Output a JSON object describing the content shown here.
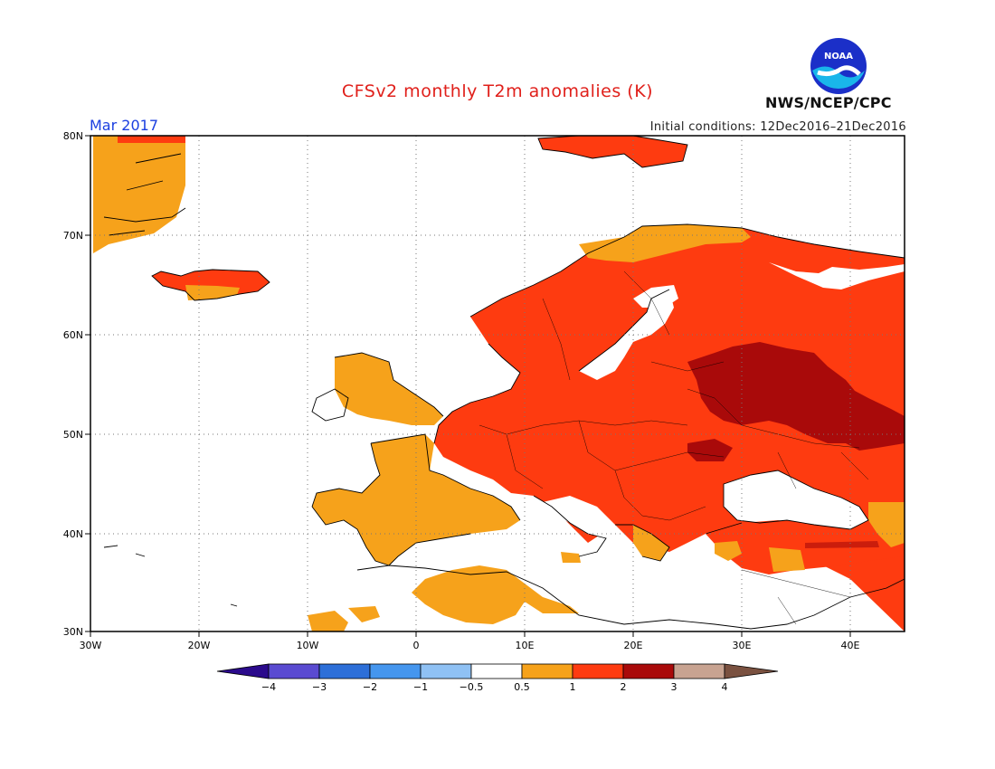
{
  "header": {
    "title": "CFSv2 monthly T2m anomalies (K)",
    "agency": "NWS/NCEP/CPC",
    "logo_text": "NOAA",
    "month": "Mar 2017",
    "initial_conditions": "Initial conditions: 12Dec2016–21Dec2016"
  },
  "map": {
    "lat_labels": [
      "80N",
      "70N",
      "60N",
      "50N",
      "40N",
      "30N"
    ],
    "lon_labels": [
      "30W",
      "20W",
      "10W",
      "0",
      "10E",
      "20E",
      "30E",
      "40E"
    ],
    "grid": "dotted",
    "region": "Europe",
    "lat_range": [
      30,
      80
    ],
    "lon_range": [
      -30,
      45
    ]
  },
  "colorbar": {
    "labels": [
      "−4",
      "−3",
      "−2",
      "−1",
      "−0.5",
      "0.5",
      "1",
      "2",
      "3",
      "4"
    ],
    "colors": [
      "#2b0a8c",
      "#5a4bd1",
      "#2d6fd8",
      "#4596ee",
      "#8fc1f4",
      "#ffffff",
      "#f6a21b",
      "#fe3b10",
      "#a90a0a",
      "#c8a391",
      "#7a5140"
    ]
  },
  "colors": {
    "anomaly_0_5_to_1": "#f6a21b",
    "anomaly_1_to_2": "#fe3b10",
    "anomaly_2_to_3": "#a90a0a"
  }
}
